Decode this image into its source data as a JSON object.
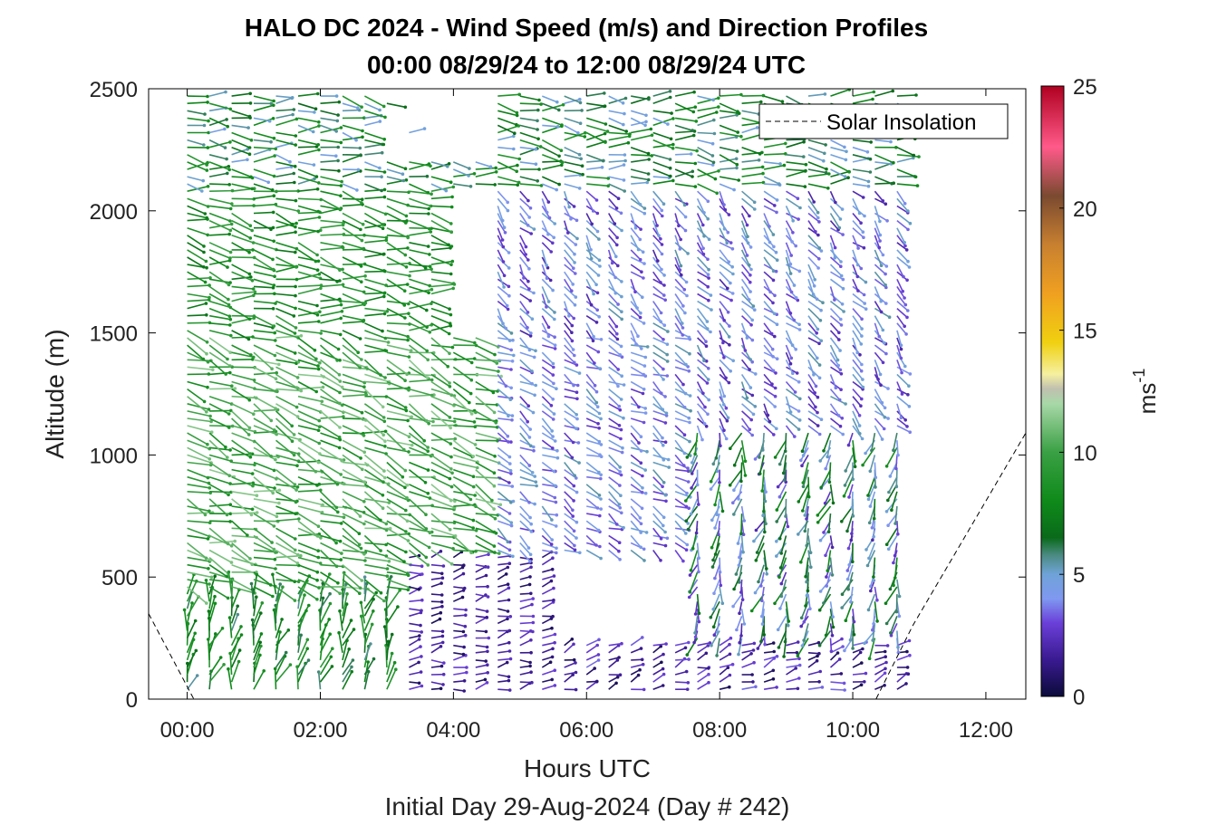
{
  "chart_data": {
    "type": "quiver",
    "title_line1": "HALO DC 2024 - Wind Speed (m/s) and Direction Profiles",
    "title_line2": "00:00 08/29/24 to 12:00 08/29/24  UTC",
    "xlabel": "Hours UTC",
    "subxlabel": "Initial Day 29-Aug-2024 (Day # 242)",
    "ylabel": "Altitude (m)",
    "xlim": [
      -0.58,
      12.6
    ],
    "ylim": [
      0,
      2500
    ],
    "xticks": [
      0,
      2,
      4,
      6,
      8,
      10,
      12
    ],
    "xtick_labels": [
      "00:00",
      "02:00",
      "04:00",
      "06:00",
      "08:00",
      "10:00",
      "12:00"
    ],
    "yticks": [
      0,
      500,
      1000,
      1500,
      2000,
      2500
    ],
    "ytick_labels": [
      "0",
      "500",
      "1000",
      "1500",
      "2000",
      "2500"
    ],
    "grid": false,
    "legend": {
      "label": "Solar Insolation",
      "position": "top-right",
      "style": "dashed"
    },
    "colorbar": {
      "label_base": "ms",
      "label_exp": "-1",
      "range": [
        0,
        25
      ],
      "ticks": [
        0,
        5,
        10,
        15,
        20,
        25
      ],
      "tick_labels": [
        "0",
        "5",
        "10",
        "15",
        "20",
        "25"
      ],
      "stops": [
        {
          "v": 0,
          "c": "#0b0b3a"
        },
        {
          "v": 1.5,
          "c": "#3a1a90"
        },
        {
          "v": 3,
          "c": "#6a3fd8"
        },
        {
          "v": 4,
          "c": "#7f98f0"
        },
        {
          "v": 5,
          "c": "#6fa3d8"
        },
        {
          "v": 5.8,
          "c": "#4a8a80"
        },
        {
          "v": 6.5,
          "c": "#0a6a1a"
        },
        {
          "v": 8,
          "c": "#0f8a1a"
        },
        {
          "v": 10,
          "c": "#3aa044"
        },
        {
          "v": 12,
          "c": "#a8d8a8"
        },
        {
          "v": 12.6,
          "c": "#c0c0b0"
        },
        {
          "v": 13.2,
          "c": "#f5f0a0"
        },
        {
          "v": 14.5,
          "c": "#f0d010"
        },
        {
          "v": 16.5,
          "c": "#f0a020"
        },
        {
          "v": 18.5,
          "c": "#c88030"
        },
        {
          "v": 20.5,
          "c": "#7a4a30"
        },
        {
          "v": 22.5,
          "c": "#ff5a8a"
        },
        {
          "v": 25,
          "c": "#b00020"
        }
      ]
    },
    "solar_insolation": {
      "x": [
        -0.58,
        0.1,
        0.25,
        10.35,
        10.9,
        12.6
      ],
      "y": [
        350,
        0,
        0,
        0,
        300,
        1090
      ]
    },
    "wind_field": {
      "time_start": 0.0,
      "time_step": 0.3333,
      "time_count": 33,
      "alt_start": 40,
      "alt_step": 30,
      "alt_count": 82,
      "layers": [
        {
          "alt_min": 0,
          "alt_max": 450,
          "time_min": 0,
          "time_max": 3.1,
          "speed_min": 5.5,
          "speed_max": 9.5,
          "dir_from": 195
        },
        {
          "alt_min": 0,
          "alt_max": 600,
          "time_min": 3.1,
          "time_max": 5.6,
          "speed_min": 0.5,
          "speed_max": 3.0,
          "dir_from": 260
        },
        {
          "alt_min": 0,
          "alt_max": 230,
          "time_min": 5.6,
          "time_max": 10.9,
          "speed_min": 0.5,
          "speed_max": 3.5,
          "dir_from": 250
        },
        {
          "alt_min": 230,
          "alt_max": 1100,
          "time_min": 7.6,
          "time_max": 10.9,
          "speed_min": 2.0,
          "speed_max": 8.5,
          "dir_from": 15
        },
        {
          "alt_min": 450,
          "alt_max": 1500,
          "time_min": 0,
          "time_max": 4.4,
          "speed_min": 8.0,
          "speed_max": 11.5,
          "dir_from": 290
        },
        {
          "alt_min": 600,
          "alt_max": 1500,
          "time_min": 4.4,
          "time_max": 7.6,
          "speed_min": 2.5,
          "speed_max": 5.5,
          "dir_from": 300
        },
        {
          "alt_min": 1500,
          "alt_max": 2100,
          "time_min": 0,
          "time_max": 3.8,
          "speed_min": 7.0,
          "speed_max": 10.0,
          "dir_from": 280
        },
        {
          "alt_min": 1100,
          "alt_max": 2100,
          "time_min": 4.4,
          "time_max": 10.9,
          "speed_min": 2.0,
          "speed_max": 5.5,
          "dir_from": 320
        },
        {
          "alt_min": 2100,
          "alt_max": 2500,
          "time_min": 0,
          "time_max": 10.9,
          "speed_min": 4.5,
          "speed_max": 9.0,
          "dir_from": 275
        }
      ]
    }
  }
}
